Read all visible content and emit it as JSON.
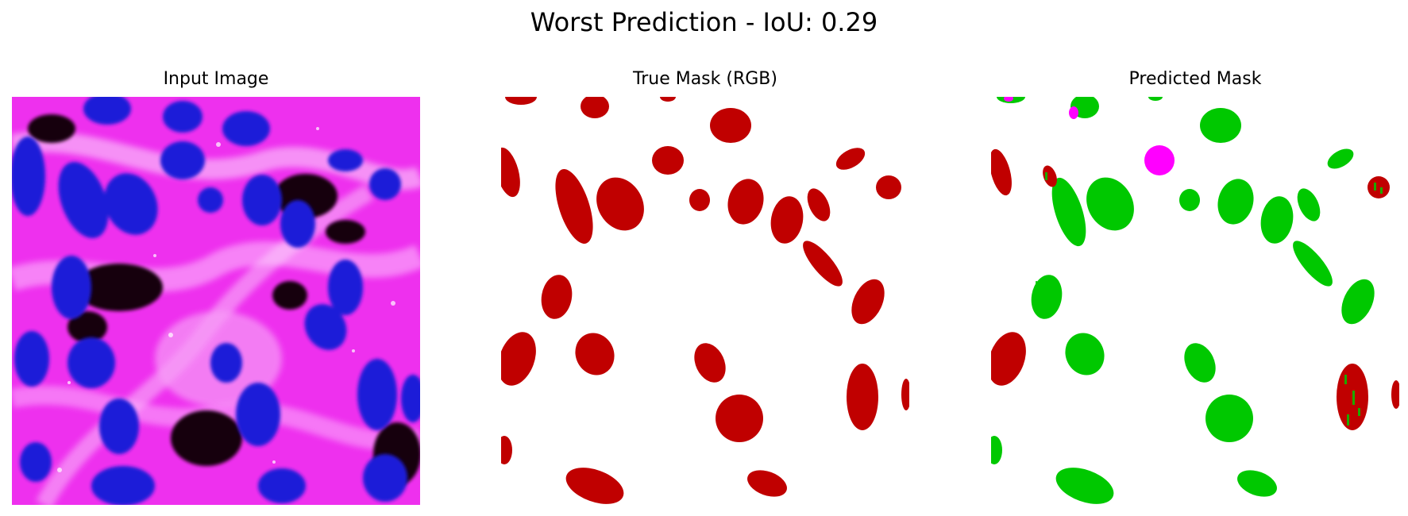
{
  "figure": {
    "title": "Worst Prediction - IoU: 0.29"
  },
  "panels": [
    {
      "title": "Input Image"
    },
    {
      "title": "True Mask (RGB)"
    },
    {
      "title": "Predicted Mask"
    }
  ],
  "colors": {
    "tissue_magenta": "#ff00ff",
    "tissue_pink": "#f070f0",
    "nucleus_blue": "#1818e0",
    "dark_region": "#200010",
    "true_mask": "#c00000",
    "pred_correct": "#00c800",
    "pred_false_class": "#ff00ff",
    "background": "#ffffff"
  }
}
